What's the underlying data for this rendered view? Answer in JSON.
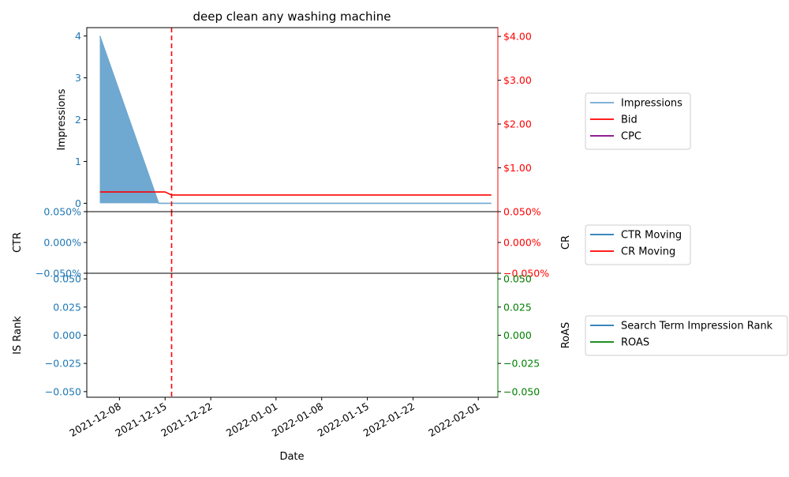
{
  "chart_data": {
    "type": "line",
    "title": "deep clean any washing machine",
    "xlabel": "Date",
    "x_ticks": [
      "2021-12-08",
      "2021-12-15",
      "2021-12-22",
      "2022-01-01",
      "2022-01-08",
      "2022-01-15",
      "2022-01-22",
      "2022-02-01"
    ],
    "x_range": [
      "2021-12-03",
      "2022-02-04"
    ],
    "vline_date": "2021-12-16",
    "colors": {
      "blue": "#1f77b4",
      "red": "#ff0000",
      "green": "#008000",
      "purple": "#800080",
      "fill": "#6fa8d0"
    },
    "panels": [
      {
        "left_label": "Impressions",
        "right_label": "",
        "left_ylim": [
          -0.2,
          4.2
        ],
        "left_ticks": [
          "0",
          "1",
          "2",
          "3",
          "4"
        ],
        "left_tick_values": [
          0,
          1,
          2,
          3,
          4
        ],
        "right_ylim": [
          0,
          4.2
        ],
        "right_ticks": [
          "$1.00",
          "$2.00",
          "$3.00",
          "$4.00"
        ],
        "right_tick_values": [
          1,
          2,
          3,
          4
        ],
        "series": [
          {
            "name": "Impressions",
            "axis": "left",
            "color": "#6fa8d0",
            "fill": true,
            "x": [
              "2021-12-05",
              "2021-12-14",
              "2022-02-03"
            ],
            "y": [
              4,
              0,
              0
            ]
          },
          {
            "name": "Bid",
            "axis": "right",
            "color": "#ff0000",
            "x": [
              "2021-12-05",
              "2021-12-15",
              "2021-12-16",
              "2022-02-03"
            ],
            "y": [
              0.45,
              0.45,
              0.38,
              0.38
            ]
          },
          {
            "name": "CPC",
            "axis": "right",
            "color": "#800080",
            "x": [],
            "y": []
          }
        ],
        "legend": [
          "Impressions",
          "Bid",
          "CPC"
        ]
      },
      {
        "left_label": "CTR",
        "right_label": "CR",
        "left_ylim": [
          -0.05,
          0.05
        ],
        "left_ticks": [
          "0.050%",
          "0.000%",
          "−0.050%"
        ],
        "left_tick_values": [
          0.05,
          0,
          -0.05
        ],
        "right_ylim": [
          -0.05,
          0.05
        ],
        "right_ticks": [
          "0.050%",
          "0.000%",
          "−0.050%"
        ],
        "right_tick_values": [
          0.05,
          0,
          -0.05
        ],
        "series": [
          {
            "name": "CTR Moving",
            "axis": "left",
            "color": "#1f77b4",
            "x": [],
            "y": []
          },
          {
            "name": "CR Moving",
            "axis": "right",
            "color": "#ff0000",
            "x": [],
            "y": []
          }
        ],
        "legend": [
          "CTR Moving",
          "CR Moving"
        ]
      },
      {
        "left_label": "IS Rank",
        "right_label": "RoAS",
        "left_ylim": [
          -0.055,
          0.055
        ],
        "left_ticks": [
          "0.050",
          "0.025",
          "0.000",
          "−0.025",
          "−0.050"
        ],
        "left_tick_values": [
          0.05,
          0.025,
          0,
          -0.025,
          -0.05
        ],
        "right_ylim": [
          -0.055,
          0.055
        ],
        "right_ticks": [
          "0.050",
          "0.025",
          "0.000",
          "−0.025",
          "−0.050"
        ],
        "right_tick_values": [
          0.05,
          0.025,
          0,
          -0.025,
          -0.05
        ],
        "series": [
          {
            "name": "Search Term Impression Rank",
            "axis": "left",
            "color": "#1f77b4",
            "x": [],
            "y": []
          },
          {
            "name": "ROAS",
            "axis": "right",
            "color": "#008000",
            "x": [],
            "y": []
          }
        ],
        "legend": [
          "Search Term Impression Rank",
          "ROAS"
        ]
      }
    ]
  }
}
